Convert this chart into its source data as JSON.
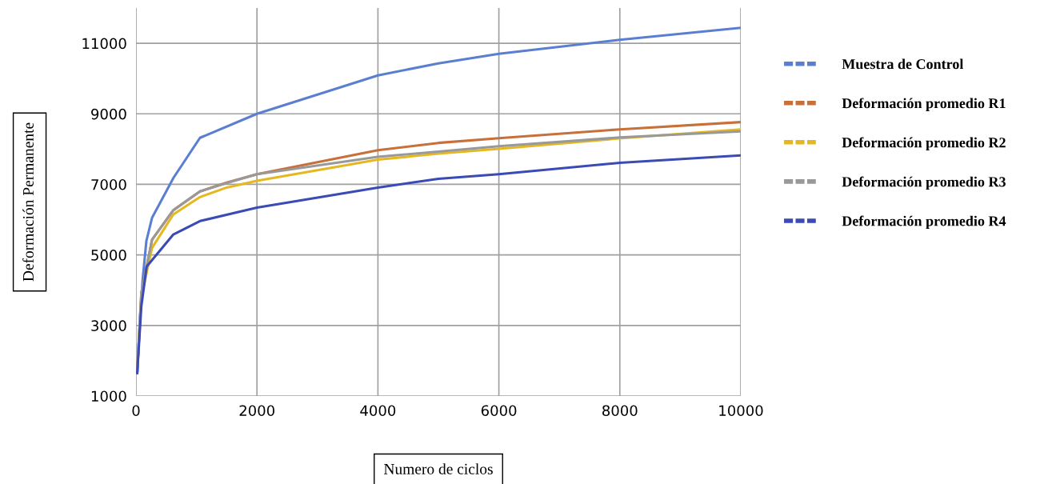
{
  "chart_data": {
    "type": "line",
    "xlabel": "Numero de ciclos",
    "ylabel": "Deformación Permanente",
    "xlim": [
      0,
      10000
    ],
    "xticks": [
      0,
      2000,
      4000,
      6000,
      8000,
      10000
    ],
    "ylim": [
      1000,
      12000
    ],
    "yticks": [
      1000,
      3000,
      5000,
      7000,
      9000,
      11000
    ],
    "grid": true,
    "legend": "right",
    "line_style": "solid",
    "marker": "none",
    "series": [
      {
        "name": "Muestra de Control",
        "color": "#5b7fd0",
        "x": [
          20,
          66,
          110,
          172,
          265,
          618,
          1058,
          2000,
          4000,
          5000,
          6000,
          8000,
          10000
        ],
        "values": [
          1700,
          3200,
          4300,
          5400,
          6050,
          7180,
          8320,
          9000,
          10090,
          10430,
          10700,
          11100,
          11440
        ]
      },
      {
        "name": "Deformación promedio R1",
        "color": "#c8703a",
        "x": [
          20,
          88,
          265,
          618,
          1058,
          1500,
          2000,
          4000,
          5000,
          6000,
          8000,
          10000
        ],
        "values": [
          1650,
          3900,
          5430,
          6270,
          6800,
          7050,
          7290,
          7970,
          8175,
          8310,
          8560,
          8765
        ]
      },
      {
        "name": "Deformación promedio R2",
        "color": "#e6b820",
        "x": [
          20,
          88,
          265,
          618,
          1058,
          1500,
          2000,
          4000,
          5000,
          6000,
          7900,
          10000
        ],
        "values": [
          1650,
          3800,
          5200,
          6150,
          6640,
          6910,
          7100,
          7700,
          7870,
          8010,
          8290,
          8560
        ]
      },
      {
        "name": "Deformación promedio R3",
        "color": "#999999",
        "x": [
          20,
          88,
          265,
          618,
          1058,
          1500,
          2000,
          4000,
          5000,
          6000,
          8000,
          10000
        ],
        "values": [
          1650,
          3920,
          5430,
          6270,
          6800,
          7040,
          7290,
          7780,
          7930,
          8080,
          8330,
          8500
        ]
      },
      {
        "name": "Deformación promedio R4",
        "color": "#3a4bb5",
        "x": [
          20,
          88,
          176,
          618,
          1058,
          2000,
          4000,
          5000,
          6000,
          8000,
          10000
        ],
        "values": [
          1650,
          3540,
          4670,
          5580,
          5960,
          6340,
          6910,
          7160,
          7290,
          7610,
          7820
        ]
      }
    ]
  }
}
